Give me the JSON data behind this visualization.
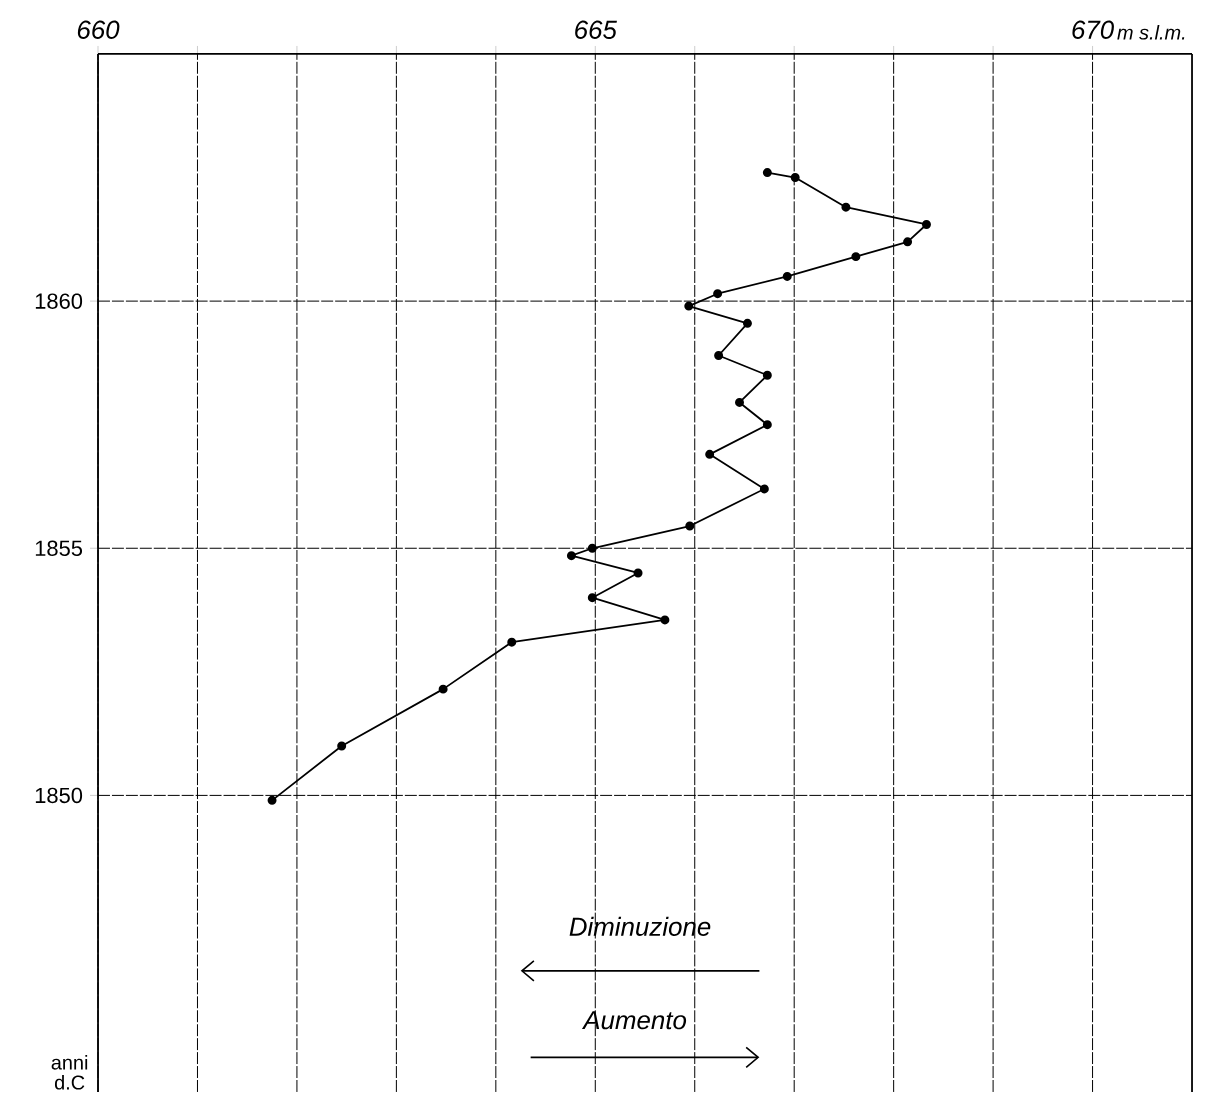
{
  "chart_data": {
    "type": "line",
    "xlabel": "m s.l.m.",
    "ylabel": "anni d.C",
    "annotations": [
      "Diminuzione",
      "Aumento"
    ],
    "x": [
      666.73,
      667.01,
      667.52,
      668.33,
      668.14,
      667.62,
      666.93,
      666.23,
      665.94,
      666.53,
      666.24,
      666.73,
      666.45,
      666.73,
      666.15,
      666.7,
      665.95,
      664.97,
      664.76,
      665.43,
      664.97,
      665.7,
      664.16,
      663.47,
      662.45,
      661.75
    ],
    "series": [
      {
        "color": "#000000",
        "values": [
          1862.6,
          1862.5,
          1861.9,
          1861.55,
          1861.2,
          1860.9,
          1860.5,
          1860.15,
          1859.9,
          1859.55,
          1858.9,
          1858.5,
          1857.95,
          1857.5,
          1856.9,
          1856.2,
          1855.45,
          1855.0,
          1854.85,
          1854.5,
          1854.0,
          1853.55,
          1853.1,
          1852.15,
          1851.0,
          1849.9
        ]
      }
    ],
    "xlim": [
      660,
      671
    ],
    "ylim": [
      1844,
      1865
    ],
    "xticks": [
      660,
      {
        "value": 661,
        "label": null
      },
      {
        "value": 662,
        "label": null
      },
      {
        "value": 663,
        "label": null
      },
      {
        "value": 664,
        "label": null
      },
      665,
      {
        "value": 666,
        "label": null
      },
      {
        "value": 667,
        "label": null
      },
      {
        "value": 668,
        "label": null
      },
      {
        "value": 669,
        "label": null
      },
      670
    ],
    "yticks": [
      1850,
      1855,
      1860
    ],
    "grid": true,
    "marker": "circle",
    "line_style": "solid"
  }
}
